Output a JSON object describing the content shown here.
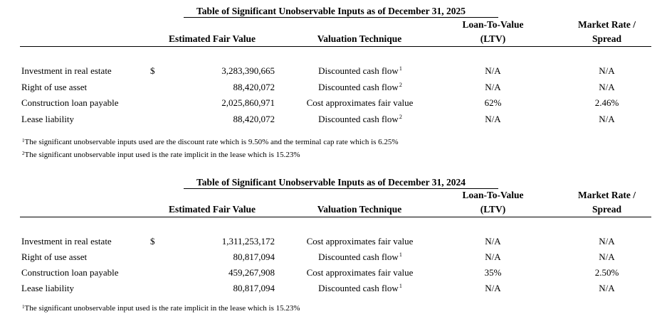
{
  "tables": [
    {
      "title": "Table of Significant Unobservable Inputs as of December 31, 2025",
      "headers": {
        "fair_value": "Estimated Fair Value",
        "technique": "Valuation Technique",
        "ltv_1": "Loan-To-Value",
        "ltv_2": "(LTV)",
        "market_1": "Market Rate /",
        "market_2": "Spread"
      },
      "rows": [
        {
          "label": "Investment in real estate",
          "currency": "$",
          "fair_value": "3,283,390,665",
          "technique": "Discounted cash flow",
          "note": "1",
          "ltv": "N/A",
          "market": "N/A"
        },
        {
          "label": "Right of use asset",
          "currency": "",
          "fair_value": "88,420,072",
          "technique": "Discounted cash flow",
          "note": "2",
          "ltv": "N/A",
          "market": "N/A"
        },
        {
          "label": "Construction loan payable",
          "currency": "",
          "fair_value": "2,025,860,971",
          "technique": "Cost approximates fair value",
          "note": "",
          "ltv": "62%",
          "market": "2.46%"
        },
        {
          "label": "Lease liability",
          "currency": "",
          "fair_value": "88,420,072",
          "technique": "Discounted cash flow",
          "note": "2",
          "ltv": "N/A",
          "market": "N/A"
        }
      ],
      "footnotes": [
        {
          "mark": "1",
          "text": "The significant unobservable inputs used are the discount rate which is 9.50% and the terminal cap rate which is 6.25%"
        },
        {
          "mark": "2",
          "text": "The significant unobservable input used is the rate implicit in the lease which is 15.23%"
        }
      ]
    },
    {
      "title": "Table of Significant Unobservable Inputs as of December 31, 2024",
      "headers": {
        "fair_value": "Estimated Fair Value",
        "technique": "Valuation Technique",
        "ltv_1": "Loan-To-Value",
        "ltv_2": "(LTV)",
        "market_1": "Market Rate /",
        "market_2": "Spread"
      },
      "rows": [
        {
          "label": "Investment in real estate",
          "currency": "$",
          "fair_value": "1,311,253,172",
          "technique": "Cost approximates fair value",
          "note": "",
          "ltv": "N/A",
          "market": "N/A"
        },
        {
          "label": "Right of use asset",
          "currency": "",
          "fair_value": "80,817,094",
          "technique": "Discounted cash flow",
          "note": "1",
          "ltv": "N/A",
          "market": "N/A"
        },
        {
          "label": "Construction loan payable",
          "currency": "",
          "fair_value": "459,267,908",
          "technique": "Cost approximates fair value",
          "note": "",
          "ltv": "35%",
          "market": "2.50%"
        },
        {
          "label": "Lease liability",
          "currency": "",
          "fair_value": "80,817,094",
          "technique": "Discounted cash flow",
          "note": "1",
          "ltv": "N/A",
          "market": "N/A"
        }
      ],
      "footnotes": [
        {
          "mark": "1",
          "text": "The significant unobservable input used is the rate implicit in the lease which is 15.23%"
        }
      ]
    }
  ]
}
